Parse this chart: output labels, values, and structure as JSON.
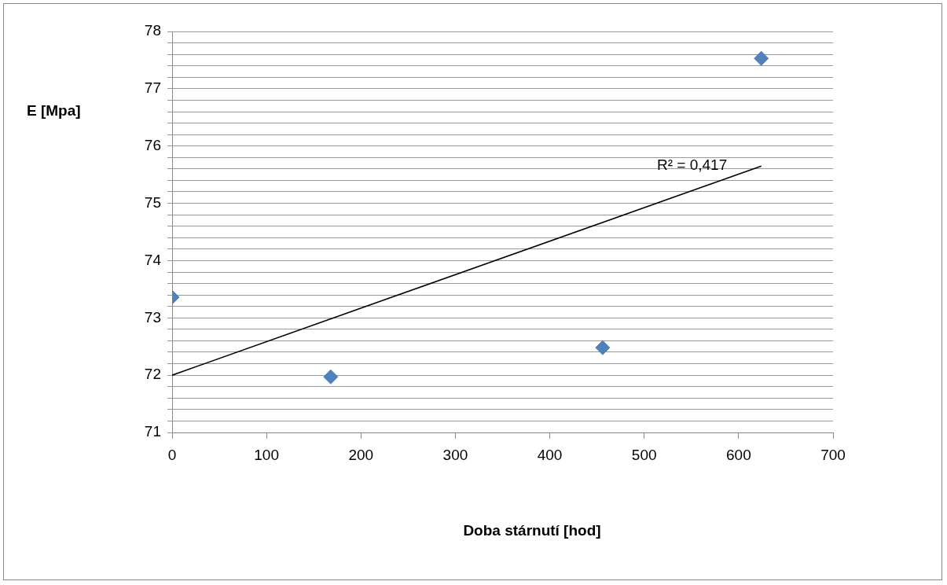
{
  "chart_data": {
    "type": "scatter",
    "xlabel": "Doba stárnutí [hod]",
    "ylabel": "E [Mpa]",
    "xlim": [
      0,
      700
    ],
    "xticks": [
      0,
      100,
      200,
      300,
      400,
      500,
      600,
      700
    ],
    "ylim": [
      71,
      78
    ],
    "yticks": [
      71,
      {
        "value": 71.2,
        "label": null
      },
      {
        "value": 71.4,
        "label": null
      },
      {
        "value": 71.6,
        "label": null
      },
      {
        "value": 71.8,
        "label": null
      },
      72,
      {
        "value": 72.2,
        "label": null
      },
      {
        "value": 72.4,
        "label": null
      },
      {
        "value": 72.6,
        "label": null
      },
      {
        "value": 72.8,
        "label": null
      },
      73,
      {
        "value": 73.2,
        "label": null
      },
      {
        "value": 73.4,
        "label": null
      },
      {
        "value": 73.6,
        "label": null
      },
      {
        "value": 73.8,
        "label": null
      },
      74,
      {
        "value": 74.2,
        "label": null
      },
      {
        "value": 74.4,
        "label": null
      },
      {
        "value": 74.6,
        "label": null
      },
      {
        "value": 74.8,
        "label": null
      },
      75,
      {
        "value": 75.2,
        "label": null
      },
      {
        "value": 75.4,
        "label": null
      },
      {
        "value": 75.6,
        "label": null
      },
      {
        "value": 75.8,
        "label": null
      },
      76,
      {
        "value": 76.2,
        "label": null
      },
      {
        "value": 76.4,
        "label": null
      },
      {
        "value": 76.6,
        "label": null
      },
      {
        "value": 76.8,
        "label": null
      },
      77,
      {
        "value": 77.2,
        "label": null
      },
      {
        "value": 77.4,
        "label": null
      },
      {
        "value": 77.6,
        "label": null
      },
      {
        "value": 77.8,
        "label": null
      },
      78
    ],
    "grid": "y",
    "legend": false,
    "marker": "diamond",
    "series": [
      {
        "color": "#4f81bd",
        "x": [
          0,
          168,
          456,
          624
        ],
        "values": [
          73.36,
          71.97,
          72.48,
          77.53
        ]
      },
      {
        "type": "line",
        "color": "#000000",
        "marker": "none",
        "x": [
          0,
          624
        ],
        "values": [
          72.0,
          75.65
        ]
      }
    ],
    "annotations": [
      "R² = 0,417"
    ]
  }
}
